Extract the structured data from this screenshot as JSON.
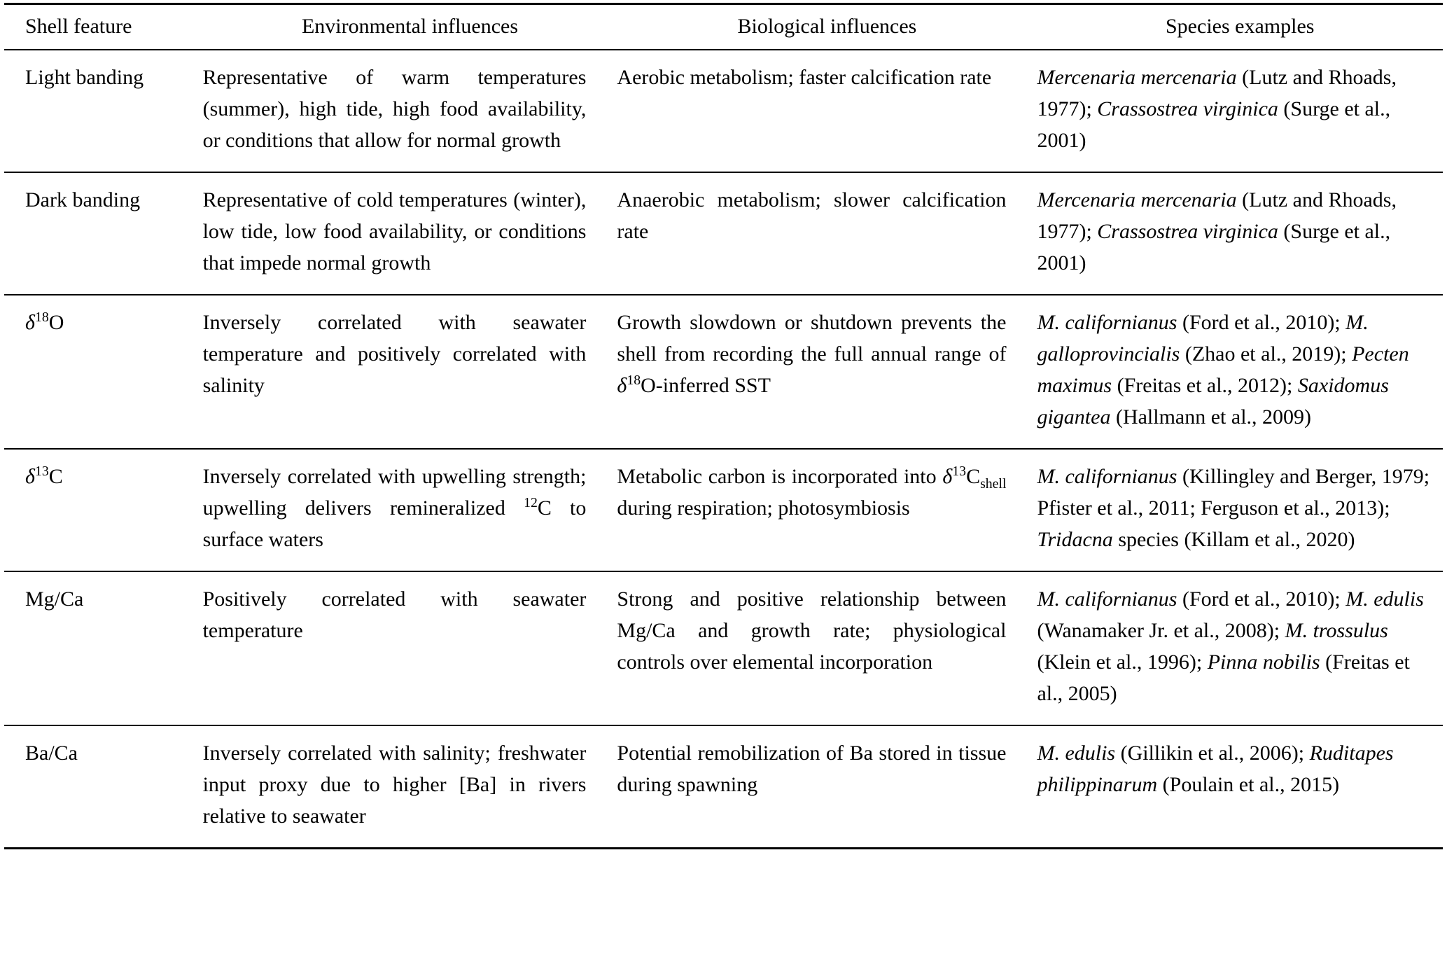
{
  "table": {
    "headers": [
      "Shell feature",
      "Environmental influences",
      "Biological influences",
      "Species examples"
    ],
    "rows": [
      {
        "feature": [
          {
            "t": "Light banding"
          }
        ],
        "environmental": [
          {
            "t": "Representative of warm temperatures (summer), high tide, high food availability, or conditions that allow for normal growth"
          }
        ],
        "biological": [
          {
            "t": "Aerobic metabolism; faster calcification rate"
          }
        ],
        "species": [
          {
            "t": "Mercenaria mercenaria",
            "i": true
          },
          {
            "t": " (Lutz and Rhoads, 1977); "
          },
          {
            "t": "Crassostrea virginica",
            "i": true
          },
          {
            "t": " (Surge et al., 2001)"
          }
        ]
      },
      {
        "feature": [
          {
            "t": "Dark banding"
          }
        ],
        "environmental": [
          {
            "t": "Representative of cold temperatures (winter), low tide, low food availability, or conditions that impede normal growth"
          }
        ],
        "biological": [
          {
            "t": "Anaerobic metabolism; slower calcification rate"
          }
        ],
        "species": [
          {
            "t": "Mercenaria mercenaria",
            "i": true
          },
          {
            "t": " (Lutz and Rhoads, 1977); "
          },
          {
            "t": "Crassostrea virginica",
            "i": true
          },
          {
            "t": " (Surge et al., 2001)"
          }
        ]
      },
      {
        "feature": [
          {
            "t": "δ",
            "i": true
          },
          {
            "t": "18",
            "sup": true
          },
          {
            "t": "O"
          }
        ],
        "environmental": [
          {
            "t": "Inversely correlated with seawater temperature and positively correlated with salinity"
          }
        ],
        "biological": [
          {
            "t": "Growth slowdown or shutdown prevents the shell from recording the full annual range of "
          },
          {
            "t": "δ",
            "i": true
          },
          {
            "t": "18",
            "sup": true
          },
          {
            "t": "O-inferred SST"
          }
        ],
        "species": [
          {
            "t": "M. californianus",
            "i": true
          },
          {
            "t": " (Ford et al., 2010); "
          },
          {
            "t": "M. galloprovincialis",
            "i": true
          },
          {
            "t": " (Zhao et al., 2019); "
          },
          {
            "t": "Pecten maximus",
            "i": true
          },
          {
            "t": " (Freitas et al., 2012); "
          },
          {
            "t": "Saxidomus gigantea",
            "i": true
          },
          {
            "t": " (Hallmann et al., 2009)"
          }
        ]
      },
      {
        "feature": [
          {
            "t": "δ",
            "i": true
          },
          {
            "t": "13",
            "sup": true
          },
          {
            "t": "C"
          }
        ],
        "environmental": [
          {
            "t": "Inversely correlated with upwelling strength; upwelling delivers remineralized "
          },
          {
            "t": "12",
            "sup": true
          },
          {
            "t": "C to surface waters"
          }
        ],
        "biological": [
          {
            "t": "Metabolic carbon is incorporated into "
          },
          {
            "t": "δ",
            "i": true
          },
          {
            "t": "13",
            "sup": true
          },
          {
            "t": "C"
          },
          {
            "t": "shell",
            "sub": true
          },
          {
            "t": " during respiration; photosymbiosis"
          }
        ],
        "species": [
          {
            "t": "M. californianus",
            "i": true
          },
          {
            "t": " (Killingley and Berger, 1979; Pfister et al., 2011; Ferguson et al., 2013); "
          },
          {
            "t": "Tridacna",
            "i": true
          },
          {
            "t": " species (Killam et al., 2020)"
          }
        ]
      },
      {
        "feature": [
          {
            "t": "Mg/Ca"
          }
        ],
        "environmental": [
          {
            "t": "Positively correlated with seawater temperature"
          }
        ],
        "biological": [
          {
            "t": "Strong and positive relationship between Mg/Ca and growth rate; physiological controls over elemental incorporation"
          }
        ],
        "species": [
          {
            "t": "M. californianus",
            "i": true
          },
          {
            "t": " (Ford et al., 2010); "
          },
          {
            "t": "M. edulis",
            "i": true
          },
          {
            "t": " (Wanamaker Jr. et al., 2008); "
          },
          {
            "t": "M. trossulus",
            "i": true
          },
          {
            "t": " (Klein et al., 1996); "
          },
          {
            "t": "Pinna nobilis",
            "i": true
          },
          {
            "t": " (Freitas et al., 2005)"
          }
        ]
      },
      {
        "feature": [
          {
            "t": "Ba/Ca"
          }
        ],
        "environmental": [
          {
            "t": "Inversely correlated with salinity; freshwater input proxy due to higher [Ba] in rivers relative to seawater"
          }
        ],
        "biological": [
          {
            "t": "Potential remobilization of Ba stored in tissue during spawning"
          }
        ],
        "species": [
          {
            "t": "M. edulis",
            "i": true
          },
          {
            "t": " (Gillikin et al., 2006); "
          },
          {
            "t": "Ruditapes philippinarum",
            "i": true
          },
          {
            "t": " (Poulain et al., 2015)"
          }
        ]
      }
    ]
  }
}
